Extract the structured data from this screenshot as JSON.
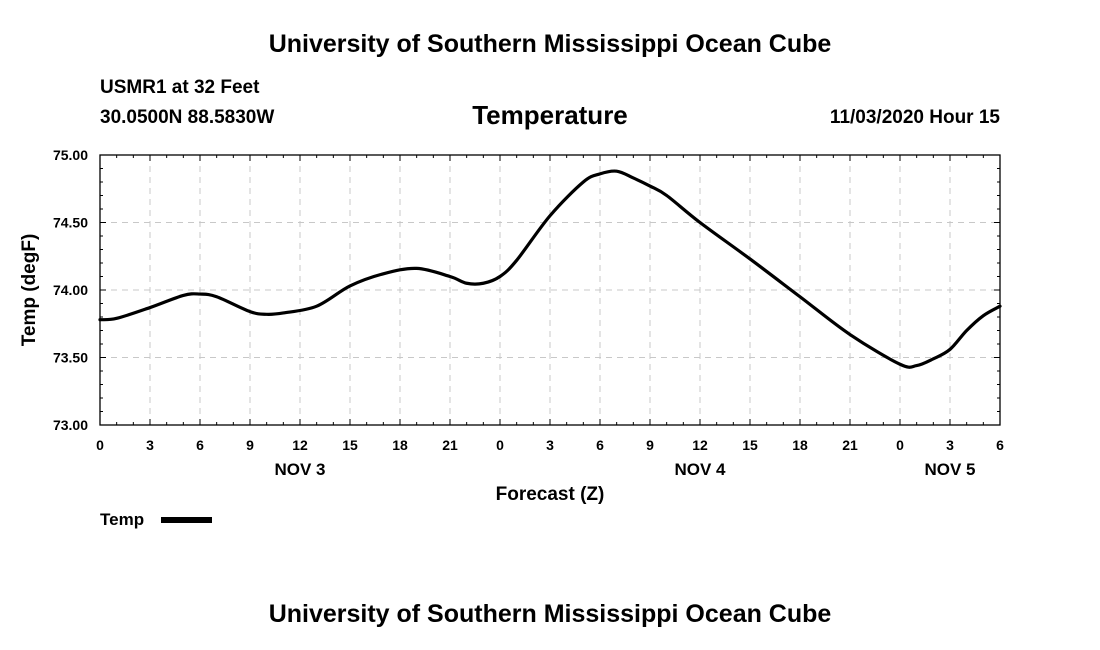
{
  "page": {
    "title_top": "University of Southern Mississippi Ocean Cube",
    "title_bottom": "University of Southern Mississippi Ocean Cube",
    "station": "USMR1 at 32 Feet",
    "coords": "30.0500N 88.5830W",
    "timestamp": "11/03/2020 Hour 15"
  },
  "chart_data": {
    "type": "line",
    "title": "Temperature",
    "xlabel": "Forecast (Z)",
    "ylabel": "Temp (degF)",
    "ylim": [
      73.0,
      75.0
    ],
    "yticks": [
      73.0,
      73.5,
      74.0,
      74.5,
      75.0
    ],
    "ytick_labels": [
      "73.00",
      "73.50",
      "74.00",
      "74.50",
      "75.00"
    ],
    "xlim": [
      0,
      54
    ],
    "xticks": [
      0,
      3,
      6,
      9,
      12,
      15,
      18,
      21,
      24,
      27,
      30,
      33,
      36,
      39,
      42,
      45,
      48,
      51,
      54
    ],
    "xtick_labels": [
      "0",
      "3",
      "6",
      "9",
      "12",
      "15",
      "18",
      "21",
      "0",
      "3",
      "6",
      "9",
      "12",
      "15",
      "18",
      "21",
      "0",
      "3",
      "6"
    ],
    "day_labels": [
      {
        "x": 12,
        "label": "NOV 3"
      },
      {
        "x": 36,
        "label": "NOV 4"
      },
      {
        "x": 51,
        "label": "NOV 5"
      }
    ],
    "grid": true,
    "legend": {
      "position": "bottom-left"
    },
    "series": [
      {
        "name": "Temp",
        "color": "#000000",
        "x": [
          0,
          1,
          3,
          5,
          6,
          7,
          9,
          10,
          11,
          13,
          15,
          17,
          19,
          21,
          22,
          23,
          24,
          25,
          27,
          29,
          30,
          31,
          32,
          33,
          34,
          36,
          39,
          42,
          45,
          48,
          49,
          50,
          51,
          52,
          53,
          54
        ],
        "values": [
          73.78,
          73.79,
          73.87,
          73.96,
          73.97,
          73.95,
          73.84,
          73.82,
          73.83,
          73.88,
          74.03,
          74.12,
          74.16,
          74.1,
          74.05,
          74.05,
          74.1,
          74.22,
          74.55,
          74.8,
          74.86,
          74.88,
          74.83,
          74.77,
          74.7,
          74.5,
          74.23,
          73.95,
          73.67,
          73.45,
          73.44,
          73.49,
          73.56,
          73.7,
          73.81,
          73.88
        ]
      }
    ]
  }
}
